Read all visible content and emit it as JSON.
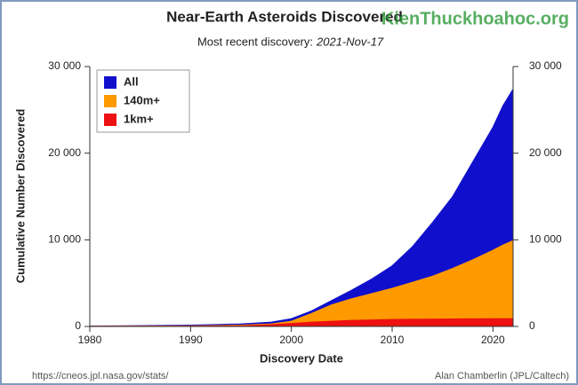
{
  "chart_data": {
    "type": "area",
    "title": "Near-Earth Asteroids Discovered",
    "subtitle": "Most recent discovery:",
    "subtitle_date": "2021-Nov-17",
    "watermark": "KienThuckhoahoc.org",
    "x_label": "Discovery Date",
    "y_label": "Cumulative Number Discovered",
    "source": "https://cneos.jpl.nasa.gov/stats/",
    "credit": "Alan Chamberlin (JPL/Caltech)",
    "x": [
      1980,
      1985,
      1990,
      1995,
      1998,
      2000,
      2002,
      2004,
      2006,
      2008,
      2010,
      2012,
      2014,
      2016,
      2018,
      2020,
      2021,
      2022
    ],
    "series": [
      {
        "name": "All",
        "color": "#1010cc",
        "values": [
          50,
          90,
          150,
          300,
          500,
          900,
          1800,
          3000,
          4200,
          5500,
          7000,
          9200,
          12000,
          15000,
          19000,
          23000,
          25500,
          27400
        ]
      },
      {
        "name": "140m+",
        "color": "#ff9900",
        "values": [
          20,
          40,
          60,
          150,
          300,
          600,
          1500,
          2500,
          3200,
          3800,
          4400,
          5100,
          5800,
          6700,
          7700,
          8800,
          9400,
          9900
        ]
      },
      {
        "name": "1km+",
        "color": "#ee1111",
        "values": [
          10,
          20,
          30,
          80,
          200,
          350,
          500,
          600,
          700,
          750,
          800,
          830,
          850,
          870,
          880,
          890,
          895,
          900
        ]
      }
    ],
    "xlim": [
      1980,
      2022
    ],
    "xticks": [
      1980,
      1990,
      2000,
      2010,
      2020
    ],
    "ylim": [
      0,
      30000
    ],
    "yticks": [
      0,
      {
        "value": 10000,
        "label": "10 000"
      },
      {
        "value": 20000,
        "label": "20 000"
      },
      {
        "value": 30000,
        "label": "30 000"
      }
    ],
    "y2lim": [
      0,
      30000
    ],
    "y2ticks": [
      0,
      {
        "value": 10000,
        "label": "10 000"
      },
      {
        "value": 20000,
        "label": "20 000"
      },
      {
        "value": 30000,
        "label": "30 000"
      }
    ],
    "grid": false,
    "legend": "top-left"
  }
}
